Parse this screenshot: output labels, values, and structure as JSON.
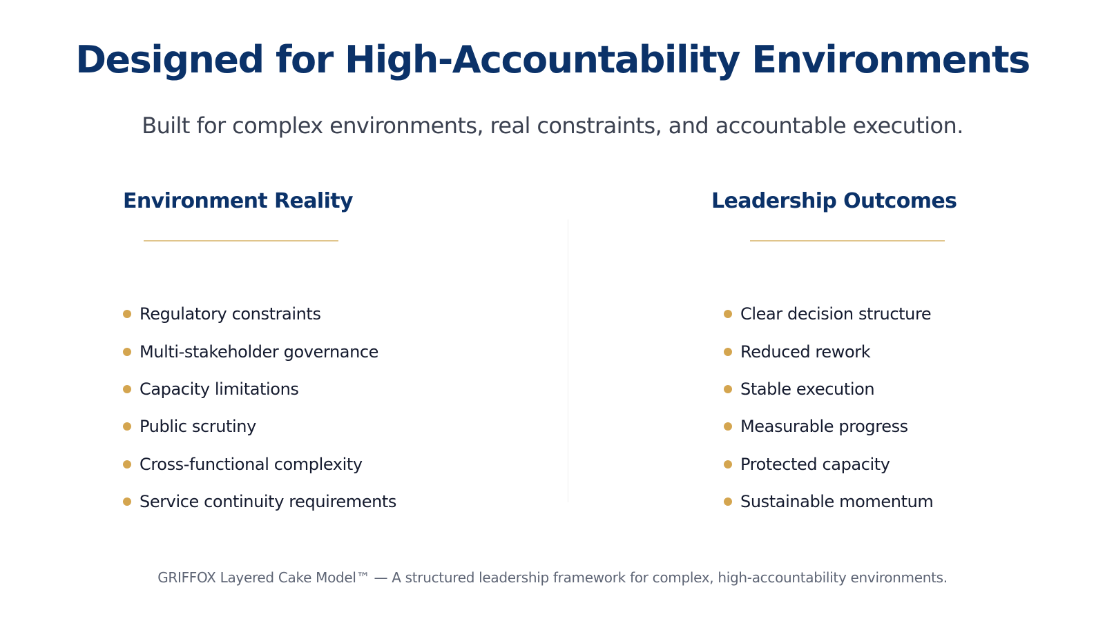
{
  "slide": {
    "title": "Designed for High-Accountability Environments",
    "subtitle": "Built for complex environments, real constraints, and accountable execution.",
    "colors": {
      "title": "#0b3269",
      "subtitle": "#3b4150",
      "heading": "#0b3269",
      "accent_gold": "#d4a54f",
      "rule_gold": "#e0c58c",
      "body_text": "#141a2e",
      "footer_text": "#5d6474",
      "divider": "#efefef"
    },
    "columns": [
      {
        "heading": "Environment Reality",
        "bullet_icon": "gold-dot-bullet-icon",
        "items": [
          "Regulatory constraints",
          "Multi-stakeholder governance",
          "Capacity limitations",
          "Public scrutiny",
          "Cross-functional complexity",
          "Service continuity requirements"
        ]
      },
      {
        "heading": "Leadership Outcomes",
        "bullet_icon": "gold-dot-bullet-icon",
        "items": [
          "Clear decision structure",
          "Reduced rework",
          "Stable execution",
          "Measurable progress",
          "Protected capacity",
          "Sustainable momentum"
        ]
      }
    ],
    "footer": "GRIFFOX Layered Cake Model™ — A structured leadership framework for complex, high-accountability environments."
  }
}
